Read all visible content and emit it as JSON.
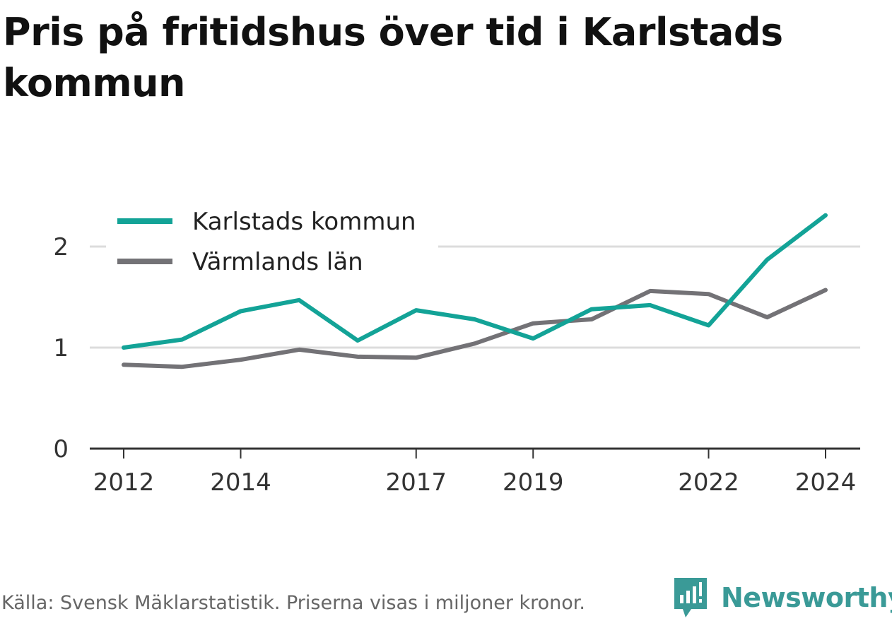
{
  "title": "Pris på fritidshus över tid i Karlstads kommun",
  "footer": {
    "source": "Källa: Svensk Mäklarstatistik. Priserna visas i miljoner kronor.",
    "brand": "Newsworthy"
  },
  "colors": {
    "karlstad": "#13a397",
    "varmland": "#737276",
    "grid": "#dcdcdc",
    "axis": "#333333",
    "brand": "#3a9a97"
  },
  "chart_data": {
    "type": "line",
    "title": "Pris på fritidshus över tid i Karlstads kommun",
    "xlabel": "",
    "ylabel": "",
    "x": [
      2012,
      2013,
      2014,
      2015,
      2016,
      2017,
      2018,
      2019,
      2020,
      2021,
      2022,
      2023,
      2024
    ],
    "xticks": [
      2012,
      2014,
      2017,
      2019,
      2022,
      2024
    ],
    "yticks": [
      0,
      1,
      2
    ],
    "ylim": [
      0,
      2.4
    ],
    "xlim": [
      2011.4,
      2024.6
    ],
    "grid": true,
    "legend": "top-left",
    "series": [
      {
        "name": "Karlstads kommun",
        "color": "#13a397",
        "values": [
          1.0,
          1.08,
          1.36,
          1.47,
          1.07,
          1.37,
          1.28,
          1.09,
          1.38,
          1.42,
          1.22,
          1.87,
          2.31
        ]
      },
      {
        "name": "Värmlands län",
        "color": "#737276",
        "values": [
          0.83,
          0.81,
          0.88,
          0.98,
          0.91,
          0.9,
          1.04,
          1.24,
          1.28,
          1.56,
          1.53,
          1.3,
          1.57
        ]
      }
    ]
  }
}
